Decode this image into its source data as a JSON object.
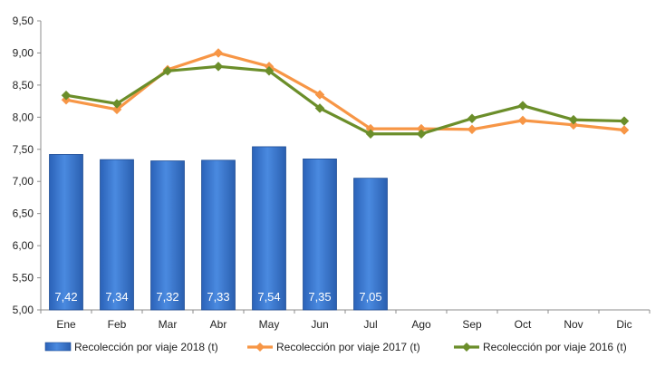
{
  "chart_data": {
    "type": "bar",
    "categories": [
      "Ene",
      "Feb",
      "Mar",
      "Abr",
      "May",
      "Jun",
      "Jul",
      "Ago",
      "Sep",
      "Oct",
      "Nov",
      "Dic"
    ],
    "ylim": [
      5.0,
      9.5
    ],
    "yticks": [
      "5,00",
      "5,50",
      "6,00",
      "6,50",
      "7,00",
      "7,50",
      "8,00",
      "8,50",
      "9,00",
      "9,50"
    ],
    "grid": false,
    "legend_position": "bottom",
    "series": [
      {
        "name": "Recolección por viaje 2018 (t)",
        "type": "bar",
        "color": "#3f7fd4",
        "values": [
          7.42,
          7.34,
          7.32,
          7.33,
          7.54,
          7.35,
          7.05,
          null,
          null,
          null,
          null,
          null
        ],
        "labels": [
          "7,42",
          "7,34",
          "7,32",
          "7,33",
          "7,54",
          "7,35",
          "7,05",
          null,
          null,
          null,
          null,
          null
        ]
      },
      {
        "name": "Recolección por viaje 2017 (t)",
        "type": "line",
        "color": "#f79646",
        "values": [
          8.27,
          8.12,
          8.74,
          9.0,
          8.79,
          8.35,
          7.82,
          7.82,
          7.81,
          7.95,
          7.88,
          7.8
        ]
      },
      {
        "name": "Recolección por viaje 2016 (t)",
        "type": "line",
        "color": "#6b8e2a",
        "values": [
          8.34,
          8.21,
          8.72,
          8.79,
          8.72,
          8.14,
          7.74,
          7.74,
          7.98,
          8.18,
          7.96,
          7.94
        ]
      }
    ]
  }
}
